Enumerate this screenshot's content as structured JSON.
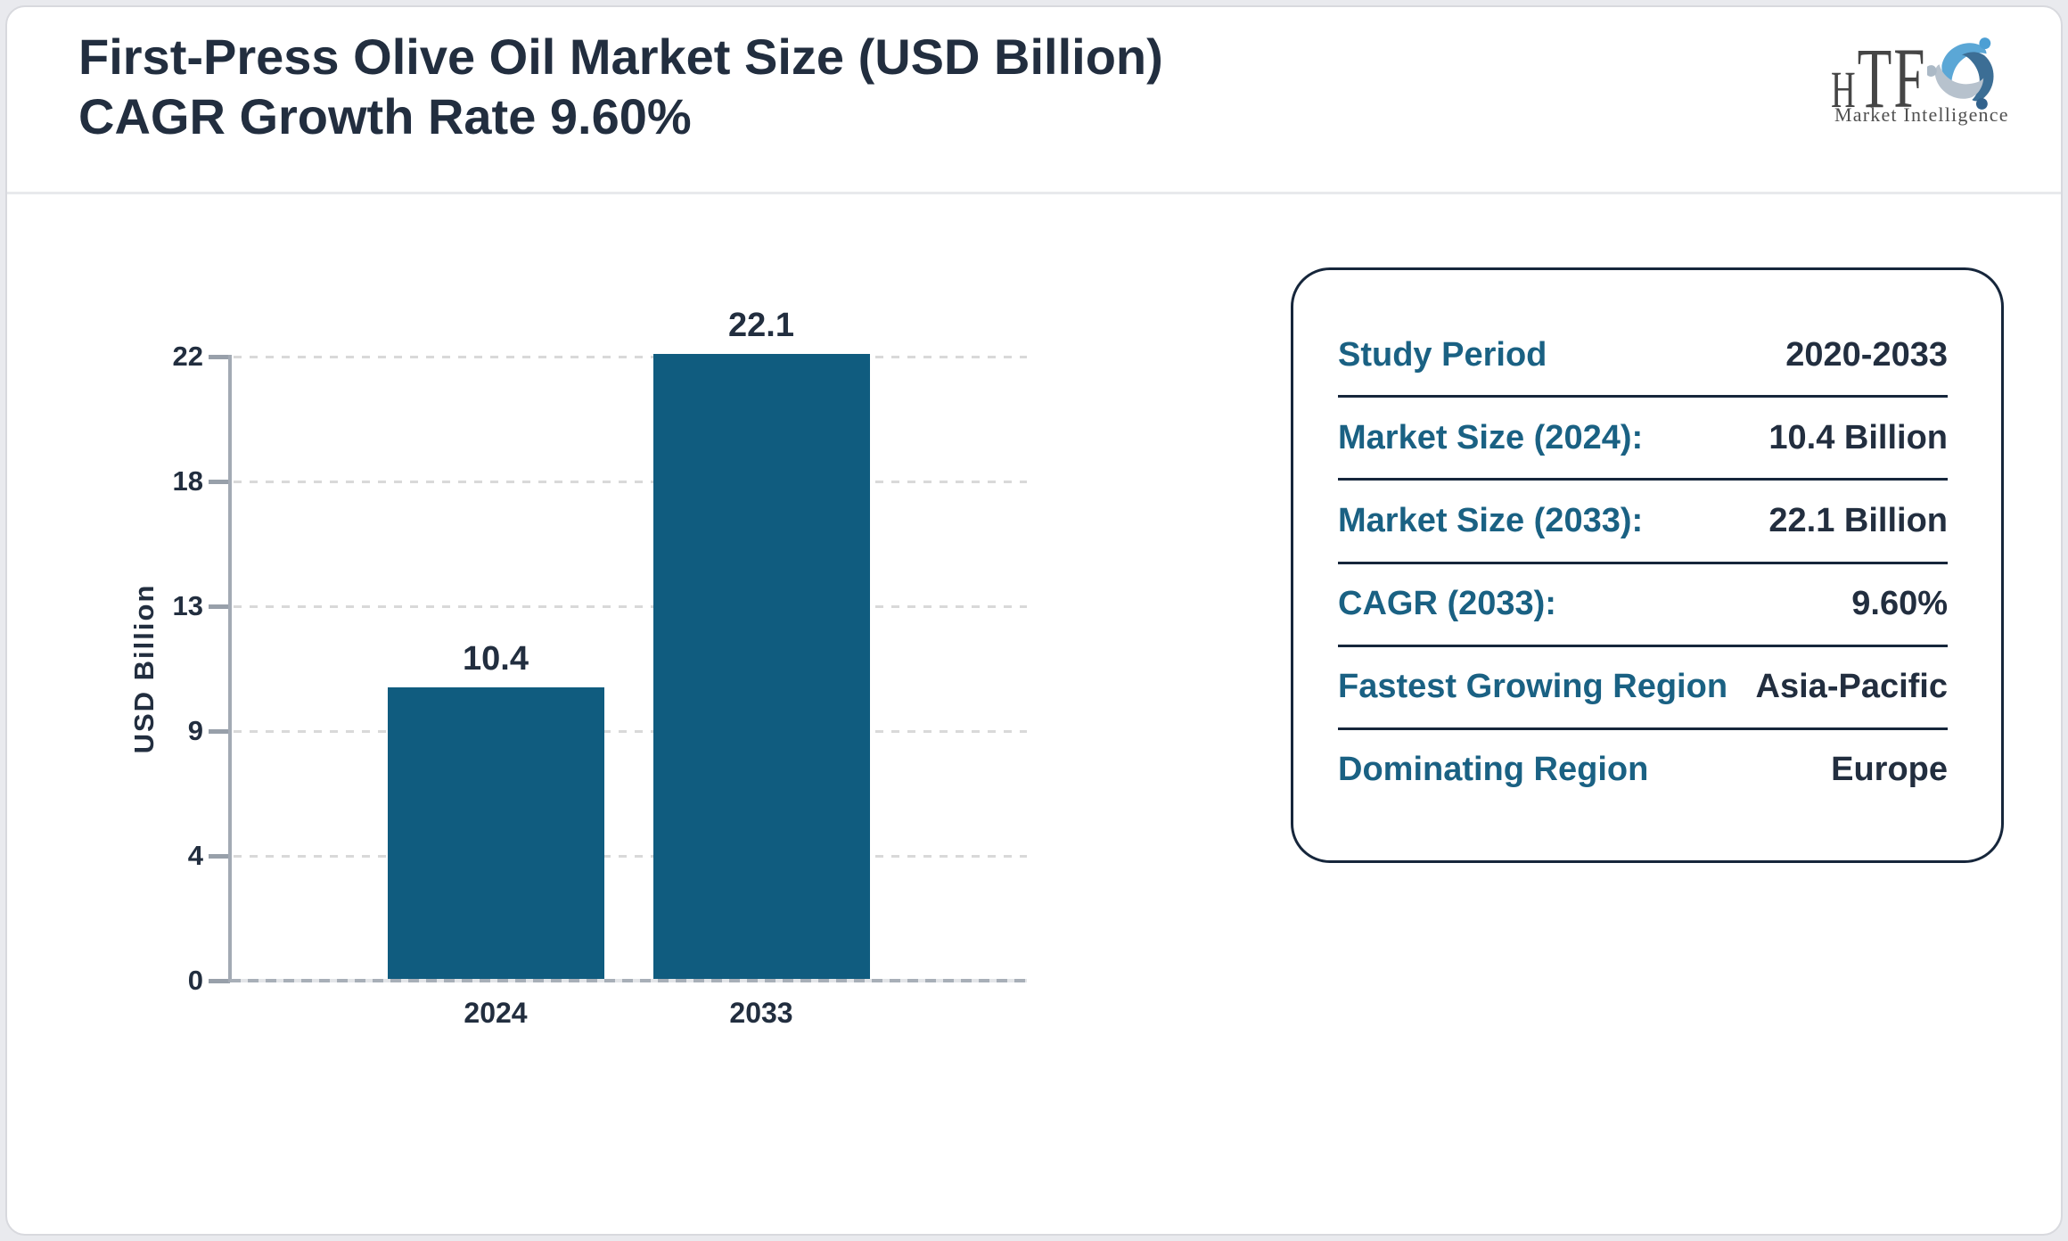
{
  "header": {
    "title_line1": "First-Press Olive Oil Market Size (USD Billion)",
    "title_line2": "CAGR Growth Rate 9.60%"
  },
  "logo": {
    "monogram_h": "H",
    "monogram_tf": "TF",
    "tagline": "Market Intelligence"
  },
  "chart_data": {
    "type": "bar",
    "title": "First-Press Olive Oil Market Size (USD Billion) CAGR Growth Rate 9.60%",
    "categories": [
      "2024",
      "2033"
    ],
    "values": [
      10.4,
      22.1
    ],
    "value_labels": [
      "10.4",
      "22.1"
    ],
    "xlabel": "",
    "ylabel": "USD Billion",
    "yticks": [
      0,
      4,
      9,
      13,
      18,
      22
    ],
    "ylim": [
      0,
      22
    ],
    "grid": "horizontal-dotted",
    "legend": "none",
    "bar_color": "#105C7F"
  },
  "info_card": {
    "rows": [
      {
        "label": "Study Period",
        "value": "2020-2033"
      },
      {
        "label": "Market Size (2024):",
        "value": "10.4 Billion"
      },
      {
        "label": "Market Size (2033):",
        "value": "22.1 Billion"
      },
      {
        "label": "CAGR (2033):",
        "value": "9.60%"
      },
      {
        "label": "Fastest Growing Region",
        "value": "Asia-Pacific"
      },
      {
        "label": "Dominating Region",
        "value": "Europe"
      }
    ]
  },
  "colors": {
    "navy_text": "#222E3F",
    "teal_label": "#1A6183",
    "bar": "#105C7F",
    "axis_gray": "#A3AAB4",
    "gridline": "#D9D9D9",
    "card_border": "#16263B",
    "page_background": "#E9EAEE",
    "frame_border": "#D8D9DE",
    "header_divider": "#E8E9EC",
    "logo_text_gray": "#454545",
    "logo_light_blue": "#5BA7D6",
    "logo_dark_blue": "#3C6E95",
    "logo_gray_blue": "#B7C2CD"
  }
}
